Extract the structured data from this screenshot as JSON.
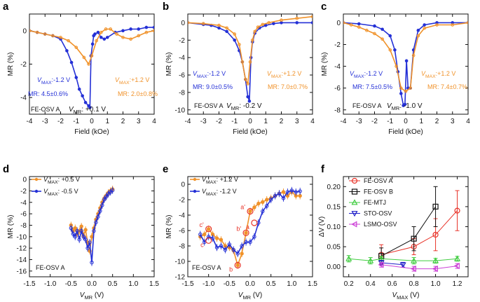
{
  "colors": {
    "orange": "#f0922a",
    "blue": "#2430d6",
    "red": "#e8342a",
    "black": "#111111",
    "green": "#3fcc3f",
    "navy": "#1c1cc8",
    "magenta": "#cc3fd6"
  },
  "chart_data": [
    {
      "panel": "a",
      "type": "line",
      "xlabel": "Field (kOe)",
      "ylabel": "MR (%)",
      "xlim": [
        -4,
        4
      ],
      "ylim": [
        -5,
        1
      ],
      "xticks": [
        "-4",
        "-3",
        "-2",
        "-1",
        "0",
        "1",
        "2",
        "3",
        "4"
      ],
      "yticks": [
        "0",
        "-2",
        "-4"
      ],
      "series": [
        {
          "name": "V_MAX -1.2 V",
          "color": "blue",
          "x": [
            -4,
            -3.5,
            -3,
            -2.5,
            -2,
            -1.6,
            -1.3,
            -1.0,
            -0.8,
            -0.6,
            -0.4,
            -0.2,
            -0.12,
            -0.05,
            0.05,
            0.12,
            0.2,
            0.4,
            0.6,
            0.8,
            1.0,
            1.5,
            2,
            2.5,
            3,
            3.5,
            4
          ],
          "y": [
            0,
            -0.1,
            -0.2,
            -0.3,
            -0.5,
            -1.2,
            -1.9,
            -2.8,
            -3.5,
            -3.9,
            -4.3,
            -4.5,
            -4.6,
            -1.5,
            -0.8,
            -0.3,
            -0.2,
            -0.1,
            -0.4,
            -0.5,
            -0.4,
            -0.1,
            0,
            0.1,
            0.1,
            0.2,
            0.2
          ]
        },
        {
          "name": "V_MAX +1.2 V",
          "color": "orange",
          "x": [
            -4,
            -3.5,
            -3,
            -2.5,
            -2,
            -1.5,
            -1.0,
            -0.5,
            -0.2,
            0,
            0.3,
            0.6,
            0.9,
            1.2,
            1.6,
            2,
            2.5,
            3,
            3.5,
            4
          ],
          "y": [
            0,
            -0.1,
            -0.2,
            -0.3,
            -0.4,
            -0.6,
            -1.0,
            -1.6,
            -2.0,
            -1.5,
            -0.6,
            -0.1,
            0.1,
            0.1,
            -0.2,
            -0.4,
            -0.5,
            -0.3,
            -0.1,
            0
          ]
        }
      ],
      "annotations": [
        {
          "text": "V",
          "sub": "MAX",
          "value": ":-1.2 V",
          "color": "blue"
        },
        {
          "text": "MR: 4.5±0.6%",
          "color": "blue"
        },
        {
          "text": "V",
          "sub": "MAX",
          "value": ":+1.2 V",
          "color": "orange"
        },
        {
          "text": "MR: 2.0±0.8%",
          "color": "orange"
        },
        {
          "text": "FE-OSV A",
          "color": "black"
        },
        {
          "text": "V",
          "sub": "MR",
          "value": ": +0.1 V",
          "color": "black"
        }
      ]
    },
    {
      "panel": "b",
      "type": "line",
      "xlabel": "Field (kOe)",
      "ylabel": "MR (%)",
      "xlim": [
        -4,
        4
      ],
      "ylim": [
        -10.5,
        1
      ],
      "xticks": [
        "-4",
        "-3",
        "-2",
        "-1",
        "0",
        "1",
        "2",
        "3",
        "4"
      ],
      "yticks": [
        "0",
        "-2",
        "-4",
        "-6",
        "-8",
        "-10"
      ],
      "series": [
        {
          "name": "V_MAX -1.2 V",
          "color": "blue",
          "x": [
            -4,
            -3,
            -2.5,
            -2,
            -1.5,
            -1.0,
            -0.7,
            -0.5,
            -0.3,
            -0.15,
            -0.05,
            0.05,
            0.15,
            0.3,
            0.6,
            1.0,
            1.5,
            2,
            3,
            4
          ],
          "y": [
            0,
            -0.2,
            -0.3,
            -0.6,
            -1.0,
            -2.0,
            -3.2,
            -4.5,
            -6.5,
            -8.5,
            -9.0,
            -4.0,
            -2.2,
            -1.2,
            -0.6,
            -0.3,
            -0.1,
            0,
            0,
            0
          ]
        },
        {
          "name": "V_MAX +1.2 V",
          "color": "orange",
          "x": [
            -4,
            -3,
            -2,
            -1.5,
            -1,
            -0.7,
            -0.5,
            -0.3,
            -0.15,
            0,
            0.15,
            0.3,
            0.5,
            0.8,
            1.2,
            2,
            3,
            4
          ],
          "y": [
            0,
            -0.1,
            -0.3,
            -0.6,
            -1.3,
            -2.5,
            -4.5,
            -6.5,
            -7.0,
            -4.5,
            -2.0,
            -1.0,
            -0.5,
            -0.2,
            0,
            0.3,
            0.5,
            0.7
          ]
        }
      ],
      "annotations": [
        {
          "text": "V",
          "sub": "MAX",
          "value": ":-1.2 V",
          "color": "blue"
        },
        {
          "text": "MR: 9.0±0.5%",
          "color": "blue"
        },
        {
          "text": "V",
          "sub": "MAX",
          "value": ":+1.2 V",
          "color": "orange"
        },
        {
          "text": "MR: 7.0±0.7%",
          "color": "orange"
        },
        {
          "text": "FE-OSV A",
          "color": "black"
        },
        {
          "text": "V",
          "sub": "MR",
          "value": ": -0.2 V",
          "color": "black"
        }
      ]
    },
    {
      "panel": "c",
      "type": "line",
      "xlabel": "Field (kOe)",
      "ylabel": "MR (%)",
      "xlim": [
        -4,
        4
      ],
      "ylim": [
        -8.4,
        0.8
      ],
      "xticks": [
        "-4",
        "-3",
        "-2",
        "-1",
        "0",
        "1",
        "2",
        "3",
        "4"
      ],
      "yticks": [
        "0",
        "-2",
        "-4",
        "-6",
        "-8"
      ],
      "series": [
        {
          "name": "V_MAX -1.2 V",
          "color": "blue",
          "x": [
            -4,
            -3,
            -2,
            -1.5,
            -1.0,
            -0.7,
            -0.5,
            -0.3,
            -0.15,
            -0.05,
            0.05,
            0.15,
            0.3,
            0.5,
            0.8,
            1.2,
            2,
            3,
            4
          ],
          "y": [
            0,
            -0.1,
            -0.3,
            -0.6,
            -1.2,
            -2.5,
            -4.5,
            -6.5,
            -7.6,
            -7.5,
            -3.5,
            -6.0,
            -6.0,
            -2.5,
            -0.7,
            -0.2,
            0,
            0,
            0
          ]
        },
        {
          "name": "V_MAX +1.2 V",
          "color": "orange",
          "x": [
            -4,
            -3.5,
            -3,
            -2.5,
            -2,
            -1.5,
            -1,
            -0.6,
            -0.3,
            0,
            0.3,
            0.5,
            0.8,
            1.2,
            2,
            3,
            4
          ],
          "y": [
            0,
            -0.2,
            -0.4,
            -0.7,
            -1.0,
            -1.5,
            -2.5,
            -4.0,
            -6.0,
            -6.3,
            -6.0,
            -3.0,
            -1.2,
            -0.5,
            -0.2,
            -0.2,
            0
          ]
        }
      ],
      "annotations": [
        {
          "text": "V",
          "sub": "MAX",
          "value": ":-1.2 V",
          "color": "blue"
        },
        {
          "text": "MR: 7.5±0.5%",
          "color": "blue"
        },
        {
          "text": "V",
          "sub": "MAX",
          "value": ":+1.2 V",
          "color": "orange"
        },
        {
          "text": "MR: 7.4±0.7%",
          "color": "orange"
        },
        {
          "text": "FE-OSV A",
          "color": "black"
        },
        {
          "text": "V",
          "sub": "MR",
          "value": ": -1.0 V",
          "color": "black"
        }
      ]
    },
    {
      "panel": "d",
      "type": "line",
      "xlabel": "V",
      "xlabel_sub": "MR",
      "xlabel_unit": " (V)",
      "ylabel": "MR (%)",
      "xlim": [
        -1.5,
        1.5
      ],
      "ylim": [
        -17,
        0.5
      ],
      "xticks": [
        "-1.5",
        "-1.0",
        "-0.5",
        "0.0",
        "0.5",
        "1.0",
        "1.5"
      ],
      "yticks": [
        "0",
        "-2",
        "-4",
        "-6",
        "-8",
        "-10",
        "-12",
        "-14",
        "-16"
      ],
      "series": [
        {
          "name": "V_MAX +0.5 V",
          "color": "orange",
          "x": [
            -0.5,
            -0.45,
            -0.4,
            -0.35,
            -0.3,
            -0.25,
            -0.2,
            -0.15,
            -0.1,
            -0.05,
            0,
            0.05,
            0.1,
            0.15,
            0.2,
            0.25,
            0.3,
            0.35,
            0.4,
            0.45,
            0.5
          ],
          "y": [
            -8.0,
            -9.0,
            -8.5,
            -9.5,
            -9.0,
            -8.2,
            -9.8,
            -8.8,
            -11.0,
            -12.5,
            -10.0,
            -8.5,
            -7.0,
            -6.0,
            -5.0,
            -4.0,
            -3.3,
            -2.8,
            -2.3,
            -2.0,
            -1.7
          ]
        },
        {
          "name": "V_MAX -0.5 V",
          "color": "blue",
          "x": [
            -0.5,
            -0.45,
            -0.4,
            -0.35,
            -0.3,
            -0.25,
            -0.2,
            -0.15,
            -0.1,
            -0.05,
            0,
            0.05,
            0.1,
            0.15,
            0.2,
            0.25,
            0.3,
            0.35,
            0.4,
            0.45,
            0.5
          ],
          "y": [
            -8.5,
            -9.5,
            -10.0,
            -9.0,
            -10.5,
            -9.0,
            -10.0,
            -10.5,
            -12.0,
            -11.0,
            -14.5,
            -9.0,
            -7.5,
            -6.5,
            -5.5,
            -4.5,
            -3.5,
            -3.0,
            -2.5,
            -2.2,
            -1.9
          ]
        }
      ],
      "legend": [
        {
          "text": "V",
          "sub": "MAX",
          "value": ": +0.5 V",
          "color": "orange"
        },
        {
          "text": "V",
          "sub": "MAX",
          "value": ": -0.5 V",
          "color": "blue"
        }
      ],
      "annotations": [
        {
          "text": "FE-OSV A",
          "color": "black"
        }
      ]
    },
    {
      "panel": "e",
      "type": "line",
      "xlabel": "V",
      "xlabel_sub": "MR",
      "xlabel_unit": " (V)",
      "ylabel": "MR (%)",
      "xlim": [
        -1.5,
        1.5
      ],
      "ylim": [
        -12,
        1
      ],
      "xticks": [
        "-1.5",
        "-1.0",
        "-0.5",
        "0.0",
        "0.5",
        "1.0",
        "1.5"
      ],
      "yticks": [
        "0",
        "-2",
        "-4",
        "-6",
        "-8",
        "-10",
        "-12"
      ],
      "series": [
        {
          "name": "V_MAX +1.2 V",
          "color": "orange",
          "x": [
            -1.2,
            -1.1,
            -1.0,
            -0.9,
            -0.8,
            -0.7,
            -0.6,
            -0.5,
            -0.4,
            -0.3,
            -0.2,
            -0.1,
            0.0,
            0.1,
            0.2,
            0.3,
            0.4,
            0.5,
            0.6,
            0.7,
            0.8,
            0.9,
            1.0,
            1.1,
            1.2
          ],
          "y": [
            -6.8,
            -6.5,
            -5.8,
            -6.5,
            -7.0,
            -7.2,
            -8.0,
            -8.2,
            -8.6,
            -10.5,
            -9.0,
            -6.3,
            -3.5,
            -3.0,
            -2.5,
            -2.3,
            -2.0,
            -1.8,
            -1.5,
            -1.2,
            -1.0,
            -1.5,
            -1.0,
            -1.5,
            -1.5
          ]
        },
        {
          "name": "V_MAX -1.2 V",
          "color": "blue",
          "x": [
            -1.2,
            -1.1,
            -1.0,
            -0.9,
            -0.8,
            -0.7,
            -0.6,
            -0.5,
            -0.4,
            -0.3,
            -0.2,
            -0.1,
            0.0,
            0.1,
            0.2,
            0.3,
            0.4,
            0.5,
            0.6,
            0.7,
            0.8,
            0.9,
            1.0,
            1.1,
            1.2
          ],
          "y": [
            -6.5,
            -7.5,
            -6.8,
            -7.0,
            -8.2,
            -8.0,
            -8.5,
            -7.8,
            -8.5,
            -9.0,
            -8.0,
            -7.5,
            -7.5,
            -6.8,
            -5.0,
            -3.5,
            -2.8,
            -2.0,
            -1.5,
            -1.2,
            -1.8,
            -1.0,
            -0.8,
            -1.0,
            -0.9
          ]
        }
      ],
      "legend": [
        {
          "text": "V",
          "sub": "MAX",
          "value": ": +1.2 V",
          "color": "orange"
        },
        {
          "text": "V",
          "sub": "MAX",
          "value": ": -1.2 V",
          "color": "blue"
        }
      ],
      "point_labels": [
        {
          "text": "a'",
          "x": 0.0,
          "y": -3.5
        },
        {
          "text": "a",
          "x": 0.1,
          "y": -5.0
        },
        {
          "text": "b'",
          "x": -0.1,
          "y": -6.3
        },
        {
          "text": "b",
          "x": -0.3,
          "y": -10.5
        },
        {
          "text": "c'",
          "x": -1.0,
          "y": -5.8
        },
        {
          "text": "c",
          "x": -1.0,
          "y": -7.3
        }
      ],
      "annotations": [
        {
          "text": "FE-OSV A",
          "color": "black"
        }
      ]
    },
    {
      "panel": "f",
      "type": "scatter",
      "xlabel": "V",
      "xlabel_sub": "MAX",
      "xlabel_unit": " (V)",
      "ylabel": "ΔV (V)",
      "xlim": [
        0.15,
        1.3
      ],
      "ylim": [
        -0.025,
        0.225
      ],
      "xticks": [
        "0.2",
        "0.4",
        "0.6",
        "0.8",
        "1.0",
        "1.2"
      ],
      "yticks": [
        "0.00",
        "0.05",
        "0.10",
        "0.15",
        "0.20"
      ],
      "series": [
        {
          "name": "FE-OSV A",
          "color": "red",
          "marker": "circle",
          "x": [
            0.5,
            0.8,
            1.0,
            1.2
          ],
          "y": [
            0.03,
            0.05,
            0.08,
            0.14
          ],
          "err": [
            0.025,
            0.02,
            0.04,
            0.05
          ]
        },
        {
          "name": "FE-OSV B",
          "color": "black",
          "marker": "square",
          "x": [
            0.5,
            0.8,
            1.0
          ],
          "y": [
            0.027,
            0.07,
            0.15
          ],
          "err": [
            0.02,
            0.03,
            0.05
          ]
        },
        {
          "name": "FE-MTJ",
          "color": "green",
          "marker": "triangle-up",
          "x": [
            0.2,
            0.4,
            0.5,
            0.8,
            1.0,
            1.2
          ],
          "y": [
            0.02,
            0.015,
            0.02,
            0.015,
            0.015,
            0.02
          ],
          "err": [
            0.008,
            0.008,
            0.006,
            0.008,
            0.006,
            0.006
          ]
        },
        {
          "name": "STO-OSV",
          "color": "navy",
          "marker": "triangle-down",
          "x": [
            0.5,
            0.7
          ],
          "y": [
            0.01,
            0.005
          ],
          "err": [
            0.006,
            0.006
          ]
        },
        {
          "name": "LSMO-OSV",
          "color": "magenta",
          "marker": "triangle-left",
          "x": [
            0.5,
            0.8,
            1.0,
            1.2
          ],
          "y": [
            0.005,
            -0.005,
            -0.005,
            0.002
          ],
          "err": [
            0.006,
            0.006,
            0.006,
            0.006
          ]
        }
      ]
    }
  ]
}
